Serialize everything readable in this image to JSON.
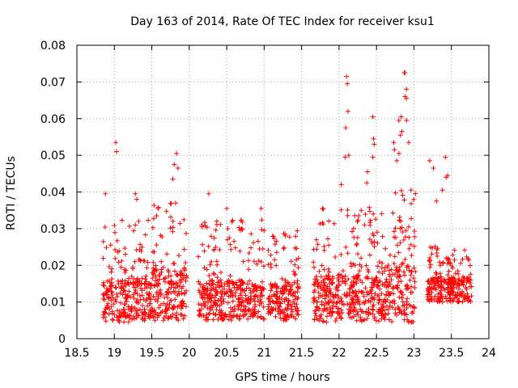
{
  "chart_data": {
    "type": "scatter",
    "title": "Day 163 of 2014, Rate Of TEC Index for receiver ksu1",
    "xlabel": "GPS time / hours",
    "ylabel": "ROTI / TECUs",
    "xlim": [
      18.5,
      24
    ],
    "ylim": [
      0,
      0.08
    ],
    "xticks": [
      18.5,
      19,
      19.5,
      20,
      20.5,
      21,
      21.5,
      22,
      22.5,
      23,
      23.5,
      24
    ],
    "xtick_labels": [
      "18.5",
      "19",
      "19.5",
      "20",
      "20.5",
      "21",
      "21.5",
      "22",
      "22.5",
      "23",
      "23.5",
      "24"
    ],
    "yticks": [
      0,
      0.01,
      0.02,
      0.03,
      0.04,
      0.05,
      0.06,
      0.07,
      0.08
    ],
    "ytick_labels": [
      "0",
      "0.01",
      "0.02",
      "0.03",
      "0.04",
      "0.05",
      "0.06",
      "0.07",
      "0.08"
    ],
    "grid": true,
    "marker": "+",
    "color": "#ff0000",
    "segments": [
      {
        "start": 18.85,
        "end": 19.5,
        "base": 0.0105,
        "spread": 0.012,
        "tail": 0.022
      },
      {
        "start": 19.5,
        "end": 19.97,
        "base": 0.012,
        "spread": 0.014,
        "tail": 0.025
      },
      {
        "start": 20.12,
        "end": 21.0,
        "base": 0.0105,
        "spread": 0.011,
        "tail": 0.022
      },
      {
        "start": 21.05,
        "end": 21.47,
        "base": 0.01,
        "spread": 0.01,
        "tail": 0.02
      },
      {
        "start": 21.65,
        "end": 22.5,
        "base": 0.011,
        "spread": 0.013,
        "tail": 0.025
      },
      {
        "start": 22.5,
        "end": 23.02,
        "base": 0.0125,
        "spread": 0.016,
        "tail": 0.028
      },
      {
        "start": 23.18,
        "end": 23.77,
        "base": 0.0135,
        "spread": 0.007,
        "tail": 0.012
      }
    ],
    "peaks": [
      [
        19.02,
        0.0535
      ],
      [
        19.03,
        0.051
      ],
      [
        18.88,
        0.0395
      ],
      [
        19.28,
        0.0395
      ],
      [
        19.3,
        0.038
      ],
      [
        19.83,
        0.0505
      ],
      [
        19.8,
        0.0475
      ],
      [
        19.85,
        0.0465
      ],
      [
        19.78,
        0.0435
      ],
      [
        20.26,
        0.0395
      ],
      [
        20.5,
        0.0355
      ],
      [
        20.96,
        0.0355
      ],
      [
        21.78,
        0.0355
      ],
      [
        22.03,
        0.042
      ],
      [
        22.1,
        0.0715
      ],
      [
        22.11,
        0.0695
      ],
      [
        22.12,
        0.062
      ],
      [
        22.09,
        0.0575
      ],
      [
        22.13,
        0.05
      ],
      [
        22.08,
        0.0495
      ],
      [
        22.38,
        0.0455
      ],
      [
        22.37,
        0.0425
      ],
      [
        22.46,
        0.0545
      ],
      [
        22.47,
        0.053
      ],
      [
        22.45,
        0.0495
      ],
      [
        22.45,
        0.0605
      ],
      [
        22.73,
        0.0535
      ],
      [
        22.74,
        0.0515
      ],
      [
        22.77,
        0.0485
      ],
      [
        22.8,
        0.0505
      ],
      [
        22.82,
        0.0555
      ],
      [
        22.84,
        0.0565
      ],
      [
        22.8,
        0.0595
      ],
      [
        22.83,
        0.0605
      ],
      [
        22.87,
        0.0725
      ],
      [
        22.88,
        0.0725
      ],
      [
        22.9,
        0.068
      ],
      [
        22.88,
        0.066
      ],
      [
        22.9,
        0.0655
      ],
      [
        22.9,
        0.0595
      ],
      [
        22.93,
        0.0535
      ],
      [
        22.96,
        0.0405
      ],
      [
        23.21,
        0.0485
      ],
      [
        23.26,
        0.0465
      ],
      [
        23.42,
        0.0495
      ],
      [
        23.45,
        0.0445
      ],
      [
        23.43,
        0.044
      ],
      [
        23.38,
        0.0405
      ],
      [
        23.3,
        0.0375
      ]
    ]
  }
}
